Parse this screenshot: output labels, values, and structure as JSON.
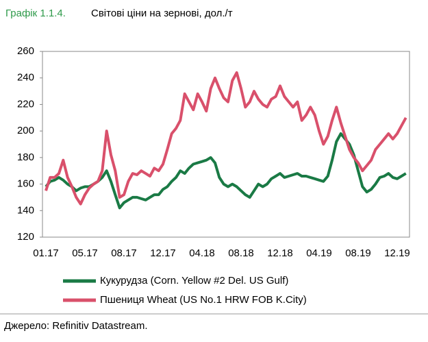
{
  "chart_data": {
    "type": "line",
    "label": "Графік 1.1.4.",
    "title": "Світові ціни на зернові, дол./т",
    "source": "Джерело: Refinitiv Datastream.",
    "categories": [
      "01.17",
      null,
      null,
      null,
      null,
      null,
      null,
      null,
      null,
      "05.17",
      null,
      null,
      null,
      null,
      null,
      null,
      null,
      null,
      "08.17",
      null,
      null,
      null,
      null,
      null,
      null,
      null,
      null,
      "12.17",
      null,
      null,
      null,
      null,
      null,
      null,
      null,
      null,
      "04.18",
      null,
      null,
      null,
      null,
      null,
      null,
      null,
      null,
      "08.18",
      null,
      null,
      null,
      null,
      null,
      null,
      null,
      null,
      "12.18",
      null,
      null,
      null,
      null,
      null,
      null,
      null,
      null,
      "04.19",
      null,
      null,
      null,
      null,
      null,
      null,
      null,
      null,
      "08.19",
      null,
      null,
      null,
      null,
      null,
      null,
      null,
      null,
      "12.19",
      null,
      null
    ],
    "series": [
      {
        "name": "Кукурудза (Corn. Yellow #2 Del. US Gulf)",
        "color": "#1a7a45",
        "values": [
          158,
          162,
          163,
          165,
          163,
          160,
          158,
          155,
          157,
          158,
          158,
          160,
          162,
          165,
          170,
          162,
          152,
          142,
          146,
          148,
          150,
          150,
          149,
          148,
          150,
          152,
          152,
          156,
          158,
          162,
          165,
          170,
          168,
          172,
          175,
          176,
          177,
          178,
          180,
          176,
          165,
          160,
          158,
          160,
          158,
          155,
          152,
          150,
          155,
          160,
          158,
          160,
          164,
          166,
          168,
          165,
          166,
          167,
          168,
          166,
          166,
          165,
          164,
          163,
          162,
          166,
          178,
          192,
          198,
          194,
          190,
          182,
          170,
          158,
          154,
          156,
          160,
          165,
          166,
          168,
          165,
          164,
          166,
          168
        ]
      },
      {
        "name": "Пшениця Wheat (US No.1 HRW FOB K.City)",
        "color": "#d9506b",
        "values": [
          155,
          165,
          165,
          168,
          178,
          165,
          158,
          150,
          145,
          152,
          157,
          160,
          162,
          170,
          200,
          182,
          170,
          150,
          152,
          162,
          168,
          167,
          170,
          168,
          166,
          172,
          170,
          175,
          186,
          198,
          202,
          208,
          228,
          222,
          216,
          228,
          222,
          215,
          232,
          240,
          232,
          225,
          222,
          238,
          244,
          232,
          218,
          222,
          230,
          224,
          220,
          218,
          224,
          226,
          234,
          226,
          222,
          218,
          222,
          208,
          212,
          218,
          212,
          200,
          190,
          196,
          208,
          218,
          206,
          196,
          186,
          180,
          176,
          170,
          174,
          178,
          186,
          190,
          194,
          198,
          194,
          198,
          204,
          210
        ]
      }
    ],
    "ylim": [
      120,
      260
    ],
    "yticks": [
      120,
      140,
      160,
      180,
      200,
      220,
      240,
      260
    ]
  }
}
